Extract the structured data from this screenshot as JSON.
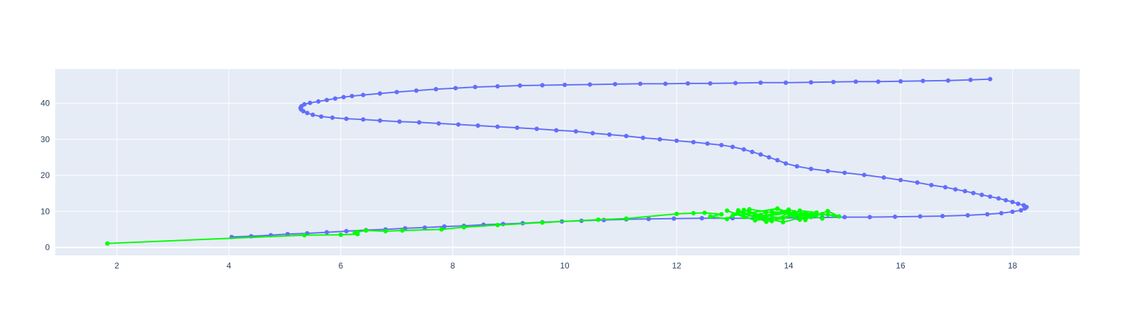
{
  "chart_data": {
    "type": "scatter",
    "mode": "lines+markers",
    "title": "",
    "xlabel": "",
    "ylabel": "",
    "xlim": [
      0.9,
      19.2
    ],
    "ylim": [
      -2.2,
      49.5
    ],
    "xticks": [
      2,
      4,
      6,
      8,
      10,
      12,
      14,
      16,
      18
    ],
    "yticks": [
      0,
      10,
      20,
      30,
      40
    ],
    "grid": true,
    "legend": "none",
    "colors": {
      "plot_bg": "#e5ecf6",
      "grid": "#ffffff",
      "zero_line": "#ffffff",
      "tick_text": "#2a3f5f"
    },
    "series": [
      {
        "color": "#636efa",
        "x": [
          4.05,
          4.4,
          4.75,
          5.05,
          5.4,
          5.75,
          6.1,
          6.45,
          6.8,
          7.15,
          7.5,
          7.85,
          8.2,
          8.55,
          8.9,
          9.25,
          9.6,
          9.95,
          10.3,
          10.7,
          11.1,
          11.5,
          11.95,
          12.45,
          13.0,
          13.55,
          14.15,
          14.6,
          15.0,
          15.45,
          15.9,
          16.35,
          16.75,
          17.2,
          17.55,
          17.8,
          18.0,
          18.15,
          18.22,
          18.25,
          18.2,
          18.1,
          18.0,
          17.88,
          17.75,
          17.6,
          17.45,
          17.3,
          17.15,
          16.98,
          16.8,
          16.55,
          16.3,
          16.0,
          15.7,
          15.35,
          15.0,
          14.7,
          14.4,
          14.15,
          13.95,
          13.8,
          13.65,
          13.5,
          13.35,
          13.2,
          13.0,
          12.8,
          12.55,
          12.3,
          12.0,
          11.7,
          11.4,
          11.1,
          10.8,
          10.5,
          10.2,
          9.85,
          9.5,
          9.15,
          8.8,
          8.45,
          8.1,
          7.75,
          7.4,
          7.05,
          6.7,
          6.4,
          6.1,
          5.85,
          5.65,
          5.5,
          5.4,
          5.33,
          5.29,
          5.28,
          5.3,
          5.35,
          5.45,
          5.6,
          5.75,
          5.9,
          6.05,
          6.2,
          6.4,
          6.7,
          7.0,
          7.35,
          7.7,
          8.05,
          8.4,
          8.8,
          9.2,
          9.6,
          10.0,
          10.45,
          10.9,
          11.35,
          11.8,
          12.2,
          12.6,
          13.05,
          13.5,
          13.95,
          14.4,
          14.8,
          15.2,
          15.6,
          16.0,
          16.4,
          16.85,
          17.25,
          17.6
        ],
        "y": [
          2.9,
          3.1,
          3.4,
          3.7,
          3.9,
          4.2,
          4.5,
          4.8,
          5.0,
          5.3,
          5.5,
          5.8,
          6.0,
          6.3,
          6.5,
          6.7,
          7.0,
          7.2,
          7.4,
          7.6,
          7.8,
          7.9,
          8.0,
          8.1,
          8.1,
          8.1,
          8.2,
          8.3,
          8.4,
          8.4,
          8.5,
          8.6,
          8.7,
          8.9,
          9.2,
          9.5,
          9.9,
          10.3,
          10.8,
          11.2,
          11.7,
          12.1,
          12.6,
          13.1,
          13.6,
          14.1,
          14.6,
          15.1,
          15.6,
          16.1,
          16.7,
          17.3,
          18.0,
          18.7,
          19.4,
          20.1,
          20.7,
          21.2,
          21.8,
          22.5,
          23.3,
          24.2,
          25.0,
          25.8,
          26.5,
          27.2,
          27.9,
          28.4,
          28.8,
          29.2,
          29.6,
          30.0,
          30.4,
          30.9,
          31.3,
          31.7,
          32.2,
          32.5,
          32.9,
          33.2,
          33.5,
          33.8,
          34.1,
          34.4,
          34.7,
          34.9,
          35.2,
          35.5,
          35.7,
          36.0,
          36.3,
          36.8,
          37.3,
          37.8,
          38.3,
          38.7,
          39.2,
          39.7,
          40.1,
          40.5,
          40.9,
          41.3,
          41.7,
          42.0,
          42.3,
          42.7,
          43.1,
          43.5,
          43.9,
          44.2,
          44.5,
          44.7,
          44.9,
          45.0,
          45.1,
          45.2,
          45.3,
          45.4,
          45.4,
          45.5,
          45.5,
          45.6,
          45.7,
          45.7,
          45.8,
          45.9,
          46.0,
          46.0,
          46.1,
          46.2,
          46.3,
          46.5,
          46.7
        ]
      },
      {
        "color": "#00ff00",
        "x": [
          1.83,
          5.35,
          6.0,
          6.3,
          6.25,
          6.3,
          6.45,
          6.8,
          7.1,
          7.8,
          8.2,
          8.8,
          9.6,
          10.6,
          11.1,
          12.0,
          12.3,
          12.5,
          12.8,
          12.6,
          12.9,
          13.1,
          13.2,
          13.4,
          13.6,
          13.3,
          13.0,
          13.8,
          14.1,
          14.3,
          14.5,
          14.2,
          13.9,
          13.5,
          13.2,
          13.7,
          14.0,
          14.4,
          14.7,
          14.9,
          14.6,
          14.3,
          14.0,
          13.6,
          13.3,
          13.8,
          14.2,
          14.5,
          14.8,
          14.1,
          13.4,
          13.1,
          13.6,
          14.3,
          14.6,
          14.0,
          13.5,
          13.9,
          14.4,
          13.7,
          13.2,
          12.9,
          13.4,
          14.1,
          14.7
        ],
        "y": [
          1.1,
          3.4,
          3.5,
          3.7,
          4.0,
          4.3,
          4.7,
          4.5,
          4.7,
          5.0,
          5.6,
          6.2,
          6.9,
          7.7,
          8.0,
          9.3,
          9.5,
          9.6,
          9.2,
          8.6,
          7.9,
          10.0,
          9.4,
          8.3,
          9.9,
          10.6,
          8.8,
          10.8,
          9.1,
          7.6,
          9.7,
          10.2,
          8.1,
          9.0,
          10.4,
          7.3,
          9.5,
          8.4,
          10.1,
          8.6,
          9.3,
          7.9,
          10.0,
          8.7,
          9.6,
          10.7,
          7.7,
          9.2,
          8.9,
          9.8,
          8.2,
          10.3,
          7.1,
          9.4,
          8.0,
          10.5,
          8.5,
          7.0,
          9.0,
          9.9,
          8.4,
          10.2,
          7.5,
          8.8,
          9.1
        ]
      }
    ]
  }
}
